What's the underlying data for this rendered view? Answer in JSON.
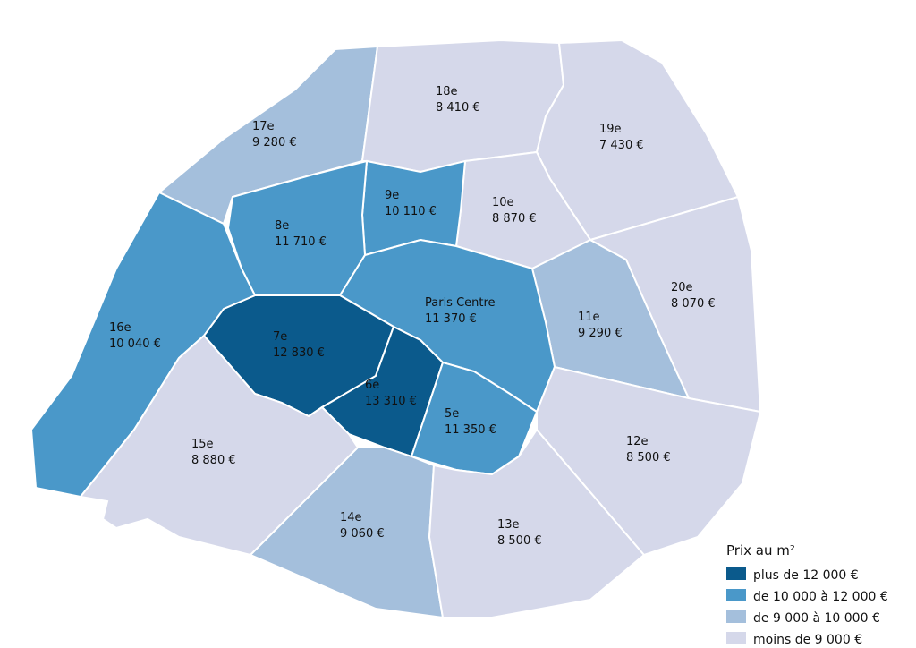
{
  "districts": [
    {
      "name": "17e",
      "price": "9 280 €",
      "color": "#a4bfdc"
    },
    {
      "name": "18e",
      "price": "8 410 €",
      "color": "#d5d8ea"
    },
    {
      "name": "19e",
      "price": "7 430 €",
      "color": "#d5d8ea"
    },
    {
      "name": "10e",
      "price": "8 870 €",
      "color": "#d5d8ea"
    },
    {
      "name": "9e",
      "price": "10 110 €",
      "color": "#4a98c9"
    },
    {
      "name": "8e",
      "price": "11 710 €",
      "color": "#4a98c9"
    },
    {
      "name": "11e",
      "price": "9 290 €",
      "color": "#a4bfdc"
    },
    {
      "name": "20e",
      "price": "8 070 €",
      "color": "#d5d8ea"
    },
    {
      "name": "Paris Centre",
      "price": "11 370 €",
      "color": "#4a98c9"
    },
    {
      "name": "7e",
      "price": "12 830 €",
      "color": "#0b5a8c"
    },
    {
      "name": "6e",
      "price": "13 310 €",
      "color": "#0b5a8c"
    },
    {
      "name": "5e",
      "price": "11 350 €",
      "color": "#4a98c9"
    },
    {
      "name": "16e",
      "price": "10 040 €",
      "color": "#4a98c9"
    },
    {
      "name": "15e",
      "price": "8 880 €",
      "color": "#d5d8ea"
    },
    {
      "name": "14e",
      "price": "9 060 €",
      "color": "#a4bfdc"
    },
    {
      "name": "13e",
      "price": "8 500 €",
      "color": "#d5d8ea"
    },
    {
      "name": "12e",
      "price": "8 500 €",
      "color": "#d5d8ea"
    }
  ],
  "legend": {
    "title": "Prix au m²",
    "items": [
      {
        "label": "plus de 12 000 €",
        "color": "#0b5a8c"
      },
      {
        "label": "de 10 000 à 12 000 €",
        "color": "#4a98c9"
      },
      {
        "label": "de 9 000 à 10 000 €",
        "color": "#a4bfdc"
      },
      {
        "label": "moins de 9 000 €",
        "color": "#d5d8ea"
      }
    ]
  }
}
